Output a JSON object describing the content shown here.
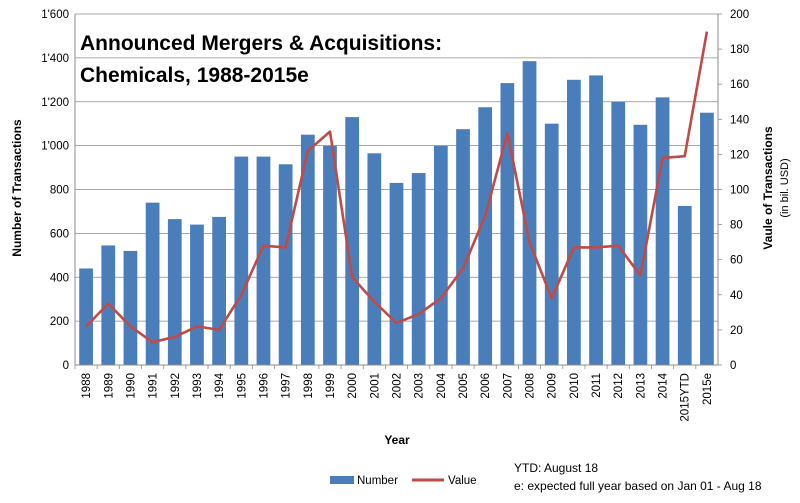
{
  "chart_data": {
    "type": "bar",
    "title_lines": [
      "Announced Mergers & Acquisitions:",
      "Chemicals, 1988-2015e"
    ],
    "xlabel": "Year",
    "ylabel_left": "Number of Transactions",
    "ylabel_right": "Vaule of Transactions",
    "ylabel_right_unit": "(in bil. USD)",
    "ylim_left": [
      0,
      1600
    ],
    "ylim_right": [
      0,
      200
    ],
    "left_tick_labels": [
      "0",
      "200",
      "400",
      "600",
      "800",
      "1'000",
      "1'200",
      "1'400",
      "1'600"
    ],
    "right_tick_labels": [
      "0",
      "20",
      "40",
      "60",
      "80",
      "100",
      "120",
      "140",
      "160",
      "180",
      "200"
    ],
    "grid": true,
    "categories": [
      "1988",
      "1989",
      "1990",
      "1991",
      "1992",
      "1993",
      "1994",
      "1995",
      "1996",
      "1997",
      "1998",
      "1999",
      "2000",
      "2001",
      "2002",
      "2003",
      "2004",
      "2005",
      "2006",
      "2007",
      "2008",
      "2009",
      "2010",
      "2011",
      "2012",
      "2013",
      "2014",
      "2015YTD",
      "2015e"
    ],
    "series": [
      {
        "name": "Number",
        "type": "bar",
        "axis": "left",
        "color": "#4a7ebb",
        "values": [
          440,
          545,
          520,
          740,
          665,
          640,
          675,
          950,
          950,
          915,
          1050,
          1000,
          1130,
          965,
          830,
          875,
          1000,
          1075,
          1175,
          1285,
          1385,
          1100,
          1300,
          1320,
          1200,
          1095,
          1220,
          725,
          1150
        ]
      },
      {
        "name": "Value",
        "type": "line",
        "axis": "right",
        "color": "#be4b48",
        "values": [
          22,
          35,
          22,
          13,
          16,
          22,
          20,
          40,
          68,
          67,
          122,
          133,
          50,
          36,
          24,
          29,
          38,
          55,
          85,
          132,
          70,
          38,
          67,
          67,
          68,
          51,
          118,
          119,
          190
        ]
      }
    ],
    "legend_position": "bottom",
    "notes": [
      "YTD: August 18",
      "e: expected full year based on Jan 01 - Aug 18"
    ]
  }
}
